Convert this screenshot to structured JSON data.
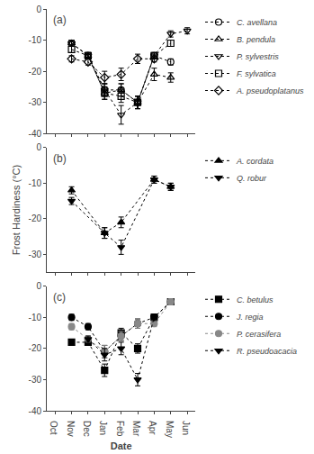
{
  "chart_data": [
    {
      "type": "line",
      "title": "(a)",
      "categories": [
        "Oct",
        "Nov",
        "Dec",
        "Jan",
        "Feb",
        "Mar",
        "Apr",
        "May",
        "Jun"
      ],
      "ylim": [
        -40,
        0
      ],
      "yticks": [
        0,
        -10,
        -20,
        -30,
        -40
      ],
      "grid": false,
      "tick_labels": "y",
      "series": [
        {
          "name": "C. avellana",
          "color": "#000000",
          "marker": "circle-open",
          "line_style": "dotted",
          "x": [
            "Nov",
            "Dec",
            "Jan",
            "Feb",
            "Mar",
            "Apr",
            "May"
          ],
          "values": [
            -11,
            -15,
            -26,
            -26,
            -30,
            -15,
            -17
          ],
          "yerr": [
            1.0,
            1.0,
            2.0,
            2.0,
            2.0,
            1.0,
            1.0
          ]
        },
        {
          "name": "B. pendula",
          "color": "#000000",
          "marker": "triangle-up-open",
          "line_style": "dotted",
          "x": [
            "Nov",
            "Dec",
            "Jan",
            "Feb",
            "Mar",
            "Apr",
            "May"
          ],
          "values": [
            -11,
            -15,
            -27,
            -26,
            -30,
            -21,
            -22
          ],
          "yerr": [
            1.0,
            1.0,
            2.0,
            2.0,
            2.0,
            2.0,
            1.5
          ]
        },
        {
          "name": "P. sylvestris",
          "color": "#000000",
          "marker": "triangle-down-open",
          "line_style": "dotted",
          "x": [
            "Nov",
            "Dec",
            "Jan",
            "Feb",
            "Mar",
            "Apr",
            "May",
            "Jun"
          ],
          "values": [
            -11,
            -15,
            -26,
            -34,
            -30,
            -15,
            -8,
            -7
          ],
          "yerr": [
            1.0,
            1.0,
            2.0,
            3.0,
            2.0,
            1.0,
            1.0,
            1.0
          ]
        },
        {
          "name": "F. sylvatica",
          "color": "#000000",
          "marker": "square-open",
          "line_style": "dotted",
          "x": [
            "Nov",
            "Dec",
            "Jan",
            "Feb",
            "Mar",
            "Apr",
            "May"
          ],
          "values": [
            -13,
            -15,
            -27,
            -28,
            -30,
            -15,
            -11
          ],
          "yerr": [
            1.0,
            1.0,
            2.0,
            2.0,
            2.0,
            1.0,
            1.0
          ]
        },
        {
          "name": "A. pseudoplatanus",
          "color": "#000000",
          "marker": "diamond-open",
          "line_style": "dotted",
          "x": [
            "Nov",
            "Dec",
            "Jan",
            "Feb",
            "Mar",
            "Apr"
          ],
          "values": [
            -16,
            -17,
            -22,
            -21,
            -16,
            -16
          ],
          "yerr": [
            1.0,
            1.0,
            2.0,
            2.0,
            1.5,
            1.0
          ]
        }
      ]
    },
    {
      "type": "line",
      "title": "(b)",
      "y_label": "Frost Hardiness (°C)",
      "categories": [
        "Oct",
        "Nov",
        "Dec",
        "Jan",
        "Feb",
        "Mar",
        "Apr",
        "May",
        "Jun"
      ],
      "ylim": [
        -35,
        0
      ],
      "yticks": [
        0,
        -10,
        -20,
        -30
      ],
      "grid": false,
      "tick_labels": "y",
      "series": [
        {
          "name": "A. cordata",
          "color": "#000000",
          "marker": "triangle-up",
          "line_style": "dotted",
          "x": [
            "Nov",
            "Jan",
            "Feb",
            "Apr",
            "May"
          ],
          "values": [
            -12,
            -24,
            -21,
            -9,
            -11
          ],
          "yerr": [
            1.0,
            1.5,
            1.5,
            1.0,
            1.0
          ]
        },
        {
          "name": "Q. robur",
          "color": "#000000",
          "marker": "triangle-down",
          "line_style": "dotted",
          "x": [
            "Nov",
            "Jan",
            "Feb",
            "Apr",
            "May"
          ],
          "values": [
            -15,
            -24,
            -28,
            -9,
            -11
          ],
          "yerr": [
            1.0,
            1.5,
            2.0,
            1.0,
            1.0
          ]
        }
      ]
    },
    {
      "type": "line",
      "title": "(c)",
      "x_label": "Date",
      "categories": [
        "Oct",
        "Nov",
        "Dec",
        "Jan",
        "Feb",
        "Mar",
        "Apr",
        "May",
        "Jun"
      ],
      "ylim": [
        -40,
        0
      ],
      "yticks": [
        0,
        -10,
        -20,
        -30,
        -40
      ],
      "grid": false,
      "series": [
        {
          "name": "C. betulus",
          "color": "#000000",
          "marker": "square",
          "line_style": "dotted",
          "x": [
            "Nov",
            "Dec",
            "Jan",
            "Feb",
            "Mar",
            "Apr",
            "May"
          ],
          "values": [
            -18,
            -18,
            -27,
            -15,
            -20,
            -10,
            -5
          ],
          "yerr": [
            1.0,
            1.0,
            2.0,
            1.5,
            1.5,
            1.0,
            1.0
          ]
        },
        {
          "name": "J. regia",
          "color": "#000000",
          "marker": "circle",
          "line_style": "dotted",
          "x": [
            "Nov",
            "Dec",
            "Jan",
            "Feb",
            "Mar",
            "Apr",
            "May"
          ],
          "values": [
            -10,
            -13,
            -21,
            -16,
            -12,
            -10,
            -5
          ],
          "yerr": [
            1.0,
            1.0,
            2.0,
            1.5,
            1.5,
            1.0,
            1.0
          ]
        },
        {
          "name": "P. cerasifera",
          "color": "#888888",
          "marker": "circle",
          "line_style": "dotted",
          "x": [
            "Nov",
            "Dec",
            "Jan",
            "Feb",
            "Mar",
            "Apr",
            "May"
          ],
          "values": [
            -13,
            -17,
            -21,
            -16,
            -12,
            -12,
            -5
          ],
          "yerr": [
            1.0,
            1.0,
            2.0,
            1.5,
            1.5,
            1.0,
            1.0
          ]
        },
        {
          "name": "R. pseudoacacia",
          "color": "#000000",
          "marker": "triangle-down",
          "line_style": "dotted",
          "x": [
            "Dec",
            "Jan",
            "Feb",
            "Mar",
            "Apr"
          ],
          "values": [
            -17,
            -22,
            -20,
            -30,
            -10
          ],
          "yerr": [
            1.0,
            2.0,
            2.0,
            2.0,
            1.0
          ]
        }
      ]
    }
  ]
}
